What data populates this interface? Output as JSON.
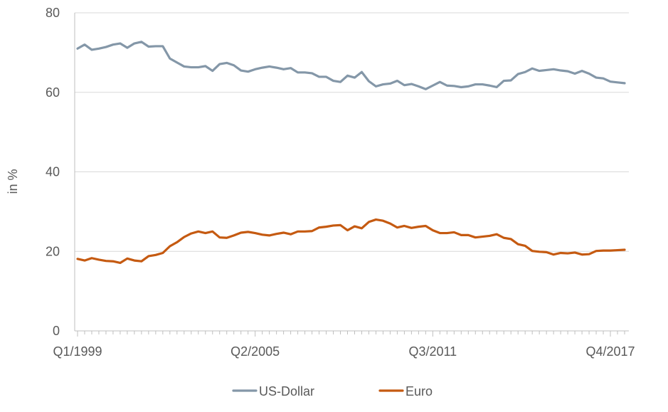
{
  "chart_data": {
    "type": "line",
    "title": "",
    "xlabel": "",
    "ylabel": "in %",
    "ylim": [
      0,
      80
    ],
    "yticks": [
      0,
      20,
      40,
      60,
      80
    ],
    "grid": true,
    "legend_position": "bottom-center",
    "x_tick_labels": [
      "Q1/1999",
      "Q2/2005",
      "Q3/2011",
      "Q4/2017"
    ],
    "x_tick_indices": [
      0,
      25,
      50,
      75
    ],
    "n_points": 78,
    "series": [
      {
        "name": "US-Dollar",
        "color": "#8497a8",
        "values": [
          71.0,
          72.0,
          70.7,
          71.0,
          71.4,
          72.0,
          72.3,
          71.2,
          72.3,
          72.7,
          71.5,
          71.6,
          71.6,
          68.5,
          67.5,
          66.5,
          66.3,
          66.3,
          66.6,
          65.4,
          67.1,
          67.4,
          66.8,
          65.5,
          65.2,
          65.8,
          66.2,
          66.5,
          66.2,
          65.8,
          66.1,
          65.0,
          65.0,
          64.8,
          63.9,
          63.9,
          62.9,
          62.6,
          64.2,
          63.7,
          65.1,
          62.8,
          61.5,
          62.0,
          62.2,
          62.9,
          61.8,
          62.1,
          61.5,
          60.8,
          61.7,
          62.6,
          61.7,
          61.6,
          61.3,
          61.5,
          62.0,
          62.0,
          61.7,
          61.3,
          62.9,
          63.0,
          64.6,
          65.1,
          66.0,
          65.4,
          65.6,
          65.8,
          65.5,
          65.3,
          64.7,
          65.4,
          64.7,
          63.7,
          63.5,
          62.7,
          62.5,
          62.3
        ]
      },
      {
        "name": "Euro",
        "color": "#c55a11",
        "values": [
          18.1,
          17.7,
          18.3,
          17.9,
          17.6,
          17.5,
          17.1,
          18.2,
          17.7,
          17.5,
          18.8,
          19.1,
          19.6,
          21.3,
          22.3,
          23.6,
          24.5,
          25.0,
          24.6,
          25.0,
          23.5,
          23.4,
          24.0,
          24.7,
          24.9,
          24.6,
          24.2,
          24.0,
          24.4,
          24.7,
          24.3,
          25.0,
          25.0,
          25.1,
          26.0,
          26.2,
          26.5,
          26.6,
          25.3,
          26.3,
          25.8,
          27.4,
          28.0,
          27.7,
          27.0,
          26.0,
          26.4,
          25.9,
          26.2,
          26.4,
          25.3,
          24.6,
          24.6,
          24.8,
          24.1,
          24.1,
          23.5,
          23.7,
          23.9,
          24.3,
          23.4,
          23.1,
          21.8,
          21.4,
          20.1,
          19.9,
          19.8,
          19.2,
          19.6,
          19.5,
          19.7,
          19.2,
          19.3,
          20.1,
          20.2,
          20.2,
          20.3,
          20.4
        ]
      }
    ]
  }
}
